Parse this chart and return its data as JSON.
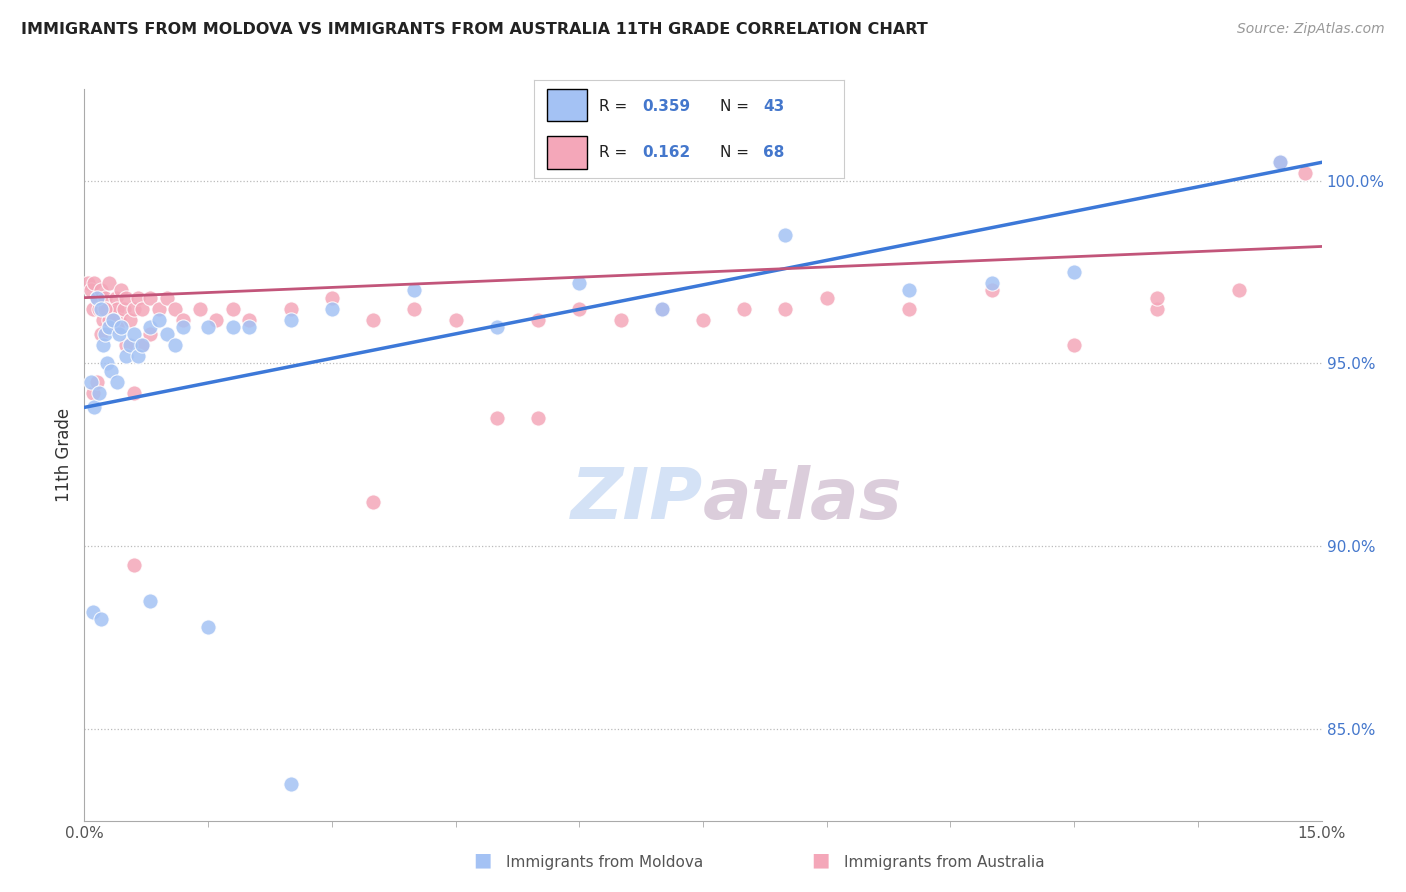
{
  "title": "IMMIGRANTS FROM MOLDOVA VS IMMIGRANTS FROM AUSTRALIA 11TH GRADE CORRELATION CHART",
  "source": "Source: ZipAtlas.com",
  "ylabel": "11th Grade",
  "xlim": [
    0.0,
    15.0
  ],
  "ylim": [
    82.5,
    102.5
  ],
  "yticks": [
    85.0,
    90.0,
    95.0,
    100.0
  ],
  "ytick_labels": [
    "85.0%",
    "90.0%",
    "95.0%",
    "100.0%"
  ],
  "moldova_color": "#a4c2f4",
  "australia_color": "#f4a7b9",
  "moldova_line_color": "#3c78d8",
  "australia_line_color": "#c2557a",
  "background_color": "#ffffff",
  "moldova_R": 0.359,
  "moldova_N": 43,
  "australia_R": 0.162,
  "australia_N": 68,
  "watermark": "ZIPatlas",
  "legend_label_moldova": "Immigrants from Moldova",
  "legend_label_australia": "Immigrants from Australia",
  "moldova_x": [
    0.08,
    0.12,
    0.15,
    0.18,
    0.2,
    0.22,
    0.25,
    0.28,
    0.3,
    0.32,
    0.35,
    0.4,
    0.42,
    0.45,
    0.5,
    0.55,
    0.6,
    0.65,
    0.7,
    0.8,
    0.9,
    1.0,
    1.1,
    1.2,
    1.5,
    1.8,
    2.0,
    2.5,
    3.0,
    4.0,
    5.0,
    6.0,
    7.0,
    8.5,
    10.0,
    11.0,
    12.0,
    14.5,
    0.1,
    0.2,
    0.8,
    1.5,
    2.5
  ],
  "moldova_y": [
    94.5,
    93.8,
    96.8,
    94.2,
    96.5,
    95.5,
    95.8,
    95.0,
    96.0,
    94.8,
    96.2,
    94.5,
    95.8,
    96.0,
    95.2,
    95.5,
    95.8,
    95.2,
    95.5,
    96.0,
    96.2,
    95.8,
    95.5,
    96.0,
    96.0,
    96.0,
    96.0,
    96.2,
    96.5,
    97.0,
    96.0,
    97.2,
    96.5,
    98.5,
    97.0,
    97.2,
    97.5,
    100.5,
    88.2,
    88.0,
    88.5,
    87.8,
    83.5
  ],
  "australia_x": [
    0.05,
    0.08,
    0.1,
    0.12,
    0.15,
    0.18,
    0.2,
    0.22,
    0.25,
    0.28,
    0.3,
    0.32,
    0.35,
    0.38,
    0.4,
    0.42,
    0.45,
    0.48,
    0.5,
    0.55,
    0.6,
    0.65,
    0.7,
    0.8,
    0.9,
    1.0,
    1.1,
    1.2,
    1.4,
    1.6,
    1.8,
    2.0,
    2.5,
    3.0,
    3.5,
    4.0,
    4.5,
    5.0,
    5.5,
    6.0,
    6.5,
    7.0,
    7.5,
    8.0,
    9.0,
    10.0,
    11.0,
    12.0,
    13.0,
    14.0,
    0.1,
    0.15,
    0.2,
    0.3,
    0.4,
    0.5,
    0.6,
    0.7,
    0.8,
    3.5,
    5.5,
    8.5,
    13.0,
    14.5,
    14.8,
    0.6,
    0.25,
    0.35
  ],
  "australia_y": [
    97.2,
    97.0,
    96.5,
    97.2,
    96.8,
    96.5,
    97.0,
    96.2,
    96.8,
    96.5,
    97.2,
    96.0,
    96.5,
    96.8,
    96.5,
    96.2,
    97.0,
    96.5,
    96.8,
    96.2,
    96.5,
    96.8,
    96.5,
    96.8,
    96.5,
    96.8,
    96.5,
    96.2,
    96.5,
    96.2,
    96.5,
    96.2,
    96.5,
    96.8,
    96.2,
    96.5,
    96.2,
    93.5,
    96.2,
    96.5,
    96.2,
    96.5,
    96.2,
    96.5,
    96.8,
    96.5,
    97.0,
    95.5,
    96.5,
    97.0,
    94.2,
    94.5,
    95.8,
    96.2,
    96.0,
    95.5,
    94.2,
    95.5,
    95.8,
    91.2,
    93.5,
    96.5,
    96.8,
    100.5,
    100.2,
    89.5,
    96.5,
    96.2
  ]
}
